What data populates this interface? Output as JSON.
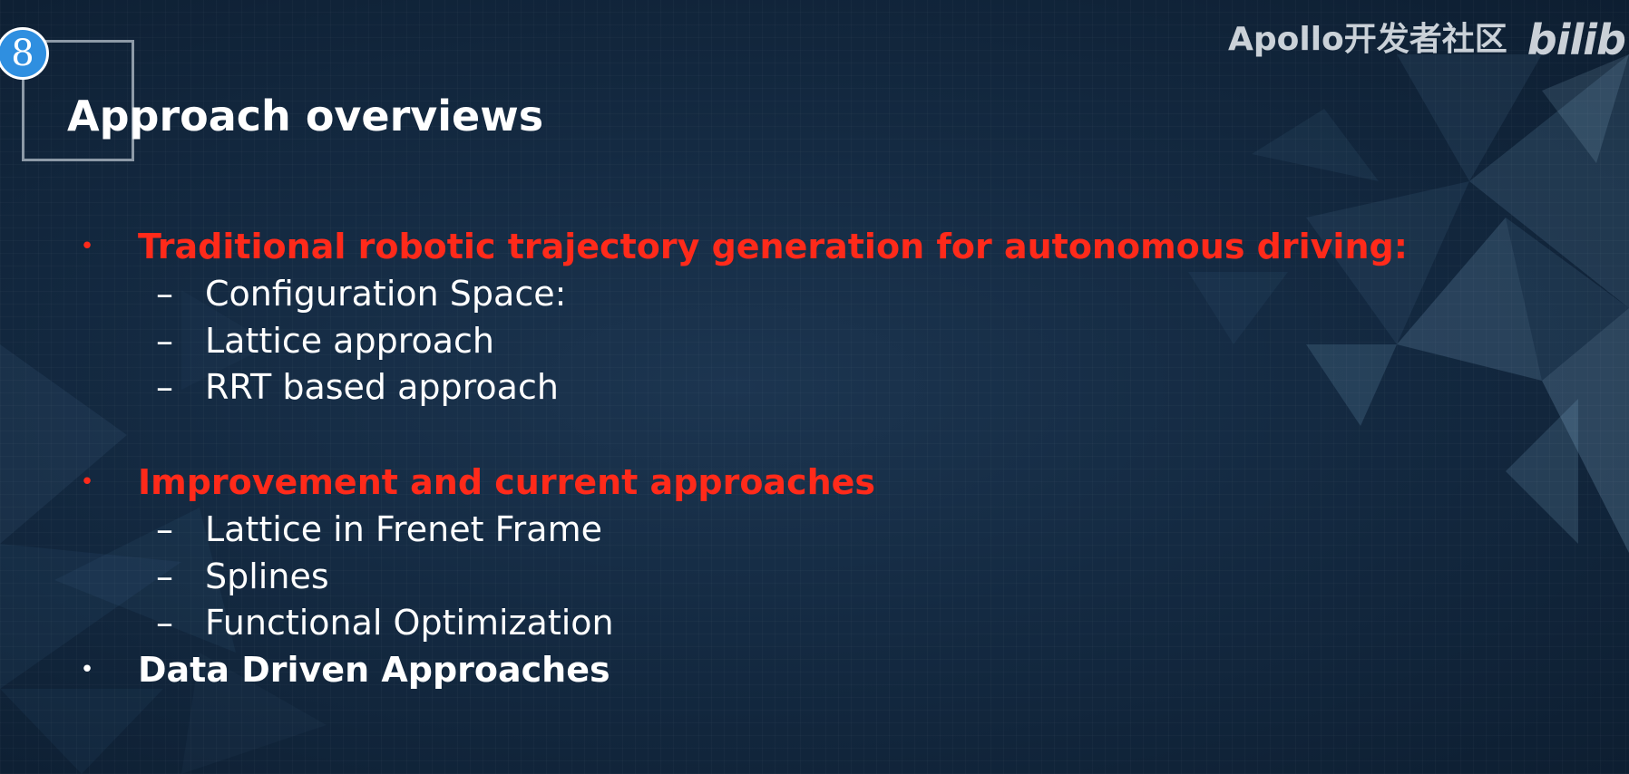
{
  "slide": {
    "number": "8",
    "title": "Approach overviews"
  },
  "watermark": {
    "text": "Apollo开发者社区",
    "logo_text": "bilib"
  },
  "colors": {
    "heading_red": "#ff2a1a",
    "text_white": "#ffffff",
    "badge_blue": "#2f8fe0",
    "background": "#142a42"
  },
  "bullets": [
    {
      "marker": "•",
      "text": "Traditional robotic trajectory generation for autonomous driving:",
      "color": "red",
      "sub": [
        {
          "marker": "–",
          "text": "Configuration Space:"
        },
        {
          "marker": "–",
          "text": "Lattice approach"
        },
        {
          "marker": "–",
          "text": "RRT based approach"
        }
      ]
    },
    {
      "marker": "•",
      "text": "Improvement and current approaches",
      "color": "red",
      "sub": [
        {
          "marker": "–",
          "text": "Lattice in Frenet Frame"
        },
        {
          "marker": "–",
          "text": "Splines"
        },
        {
          "marker": "–",
          "text": "Functional Optimization"
        }
      ]
    },
    {
      "marker": "•",
      "text": "Data Driven Approaches",
      "color": "white",
      "sub": []
    }
  ]
}
